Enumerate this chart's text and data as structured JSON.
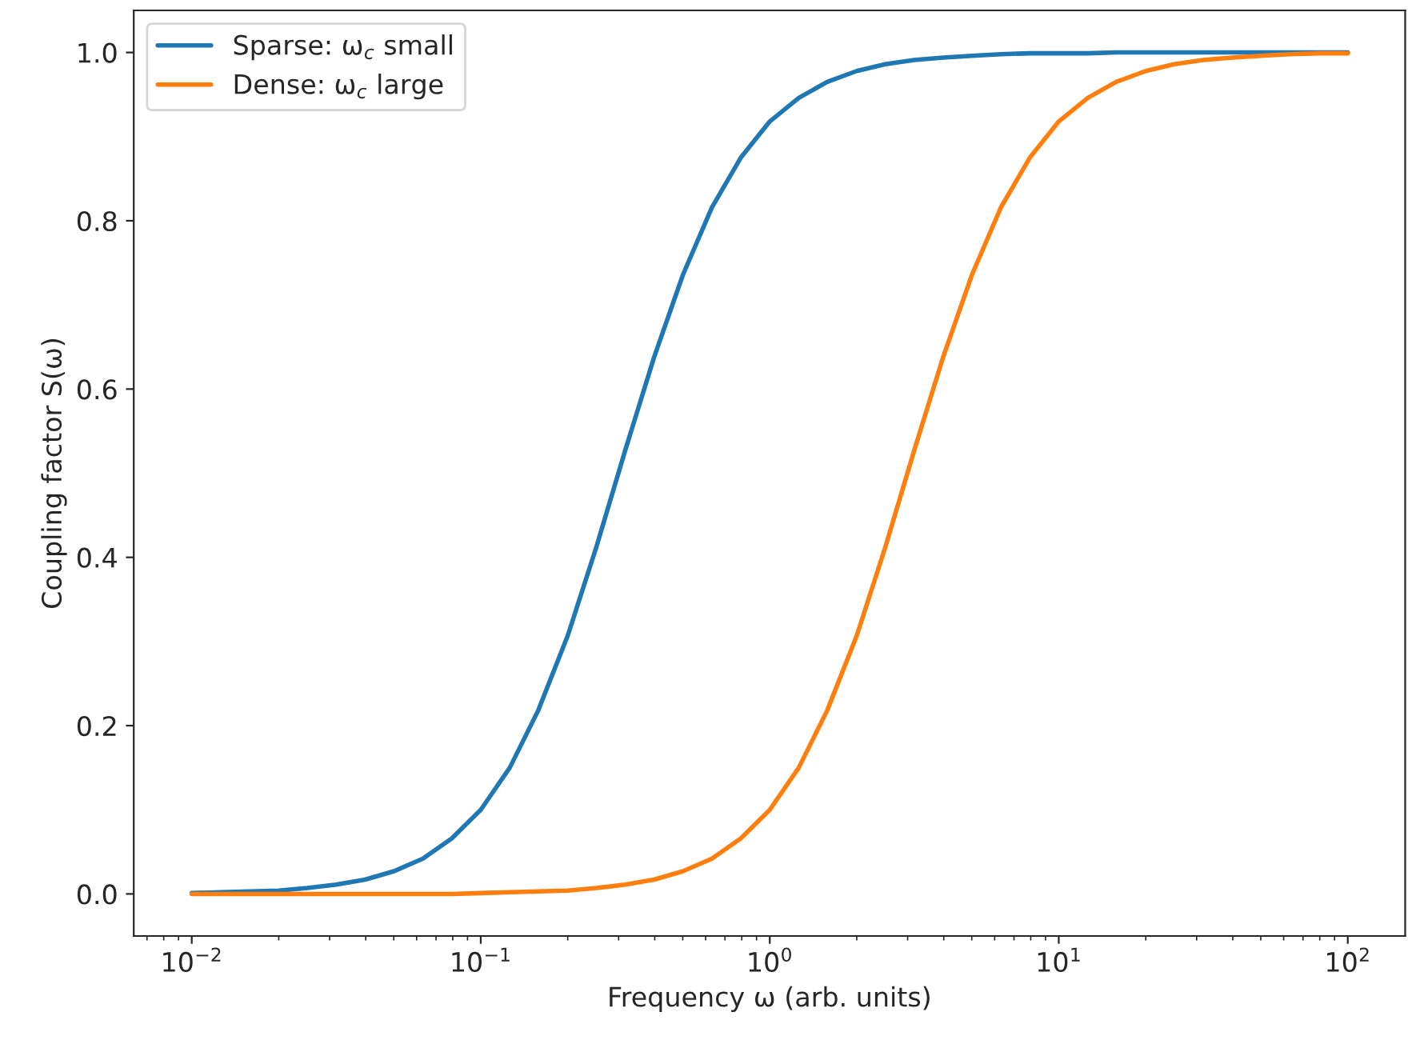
{
  "chart_data": {
    "type": "line",
    "xlabel": "Frequency ω (arb. units)",
    "ylabel": "Coupling factor S(ω)",
    "log": "x",
    "xlim": [
      0.0063,
      158
    ],
    "xticks": [
      {
        "value": 0.01,
        "label": "10$^{−2}$"
      },
      {
        "value": 0.1,
        "label": "10$^{−1}$"
      },
      {
        "value": 1,
        "label": "10$^{0}$"
      },
      {
        "value": 10,
        "label": "10$^{1}$"
      },
      {
        "value": 100,
        "label": "10$^{2}$"
      }
    ],
    "ylim": [
      -0.05,
      1.05
    ],
    "yticks": [
      {
        "value": 0,
        "label": "0.0"
      },
      {
        "value": 0.2,
        "label": "0.2"
      },
      {
        "value": 0.4,
        "label": "0.4"
      },
      {
        "value": 0.6,
        "label": "0.6"
      },
      {
        "value": 0.8,
        "label": "0.8"
      },
      {
        "value": 1,
        "label": "1.0"
      }
    ],
    "grid": false,
    "legend": "top left",
    "marker": "none",
    "line_style": "solid",
    "x": [
      0.01,
      0.0126,
      0.0158,
      0.02,
      0.0251,
      0.0316,
      0.0398,
      0.0501,
      0.0631,
      0.0794,
      0.1,
      0.126,
      0.158,
      0.2,
      0.251,
      0.316,
      0.398,
      0.501,
      0.631,
      0.794,
      1,
      1.26,
      1.58,
      2,
      2.51,
      3.16,
      3.98,
      5.01,
      6.31,
      7.94,
      10,
      12.6,
      15.8,
      20,
      25.1,
      31.6,
      39.8,
      50.1,
      63.1,
      79.4,
      100
    ],
    "series": [
      {
        "name": "Sparse: ω$_{c}$ small",
        "color": "#1f77b4",
        "values": [
          0.001,
          0.002,
          0.003,
          0.004,
          0.007,
          0.011,
          0.017,
          0.027,
          0.042,
          0.066,
          0.1,
          0.15,
          0.218,
          0.307,
          0.412,
          0.527,
          0.638,
          0.736,
          0.816,
          0.875,
          0.918,
          0.946,
          0.965,
          0.978,
          0.986,
          0.991,
          0.994,
          0.996,
          0.998,
          0.999,
          0.999,
          0.999,
          1.0,
          1.0,
          1.0,
          1.0,
          1.0,
          1.0,
          1.0,
          1.0,
          1.0
        ]
      },
      {
        "name": "Dense: ω$_{c}$ large",
        "color": "#ff7f0e",
        "values": [
          0.0,
          0.0,
          0.0,
          0.0,
          0.0,
          0.0,
          0.0,
          0.0,
          0.0,
          0.0,
          0.001,
          0.002,
          0.003,
          0.004,
          0.007,
          0.011,
          0.017,
          0.027,
          0.042,
          0.066,
          0.1,
          0.15,
          0.218,
          0.307,
          0.412,
          0.527,
          0.638,
          0.736,
          0.816,
          0.875,
          0.918,
          0.946,
          0.965,
          0.978,
          0.986,
          0.991,
          0.994,
          0.996,
          0.998,
          0.999,
          0.999
        ]
      }
    ]
  }
}
